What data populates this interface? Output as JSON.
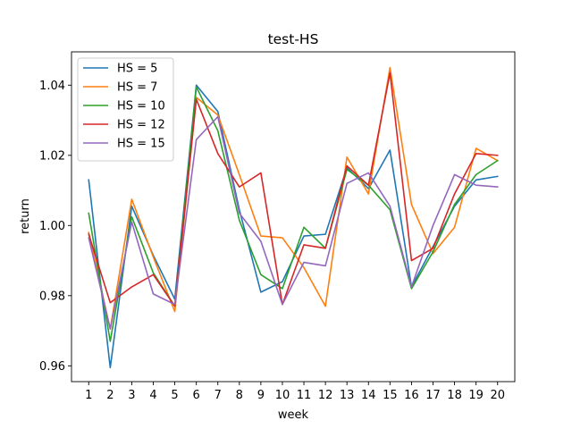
{
  "chart_data": {
    "type": "line",
    "title": "test-HS",
    "xlabel": "week",
    "ylabel": "return",
    "x": [
      1,
      2,
      3,
      4,
      5,
      6,
      7,
      8,
      9,
      10,
      11,
      12,
      13,
      14,
      15,
      16,
      17,
      18,
      19,
      20
    ],
    "xlim": [
      0.2,
      20.8
    ],
    "ylim": [
      0.9555,
      1.0495
    ],
    "yticks": [
      0.96,
      0.98,
      1.0,
      1.02,
      1.04
    ],
    "ytick_labels": [
      "0.96",
      "0.98",
      "1.00",
      "1.02",
      "1.04"
    ],
    "grid": false,
    "legend_position": "top-left",
    "series": [
      {
        "name": "HS = 5",
        "color": "#1f77b4",
        "values": [
          1.013,
          0.9595,
          1.0055,
          0.9915,
          0.979,
          1.04,
          1.0325,
          1.0045,
          0.981,
          0.984,
          0.997,
          0.9975,
          1.0165,
          1.0105,
          1.0215,
          0.9825,
          0.994,
          1.0055,
          1.013,
          1.014
        ]
      },
      {
        "name": "HS = 7",
        "color": "#ff7f0e",
        "values": [
          0.998,
          0.9705,
          1.0075,
          0.991,
          0.9755,
          1.0365,
          1.0315,
          1.0145,
          0.997,
          0.9965,
          0.988,
          0.977,
          1.0195,
          1.009,
          1.045,
          1.006,
          0.992,
          0.9995,
          1.022,
          1.0185
        ]
      },
      {
        "name": "HS = 10",
        "color": "#2ca02c",
        "values": [
          1.0035,
          0.967,
          1.0025,
          0.9865,
          0.977,
          1.0395,
          1.027,
          1.0015,
          0.986,
          0.982,
          0.9995,
          0.9935,
          1.016,
          1.0115,
          1.0045,
          0.982,
          0.9925,
          1.006,
          1.0145,
          1.0185
        ]
      },
      {
        "name": "HS = 12",
        "color": "#d62728",
        "values": [
          0.9975,
          0.978,
          0.9825,
          0.986,
          0.977,
          1.036,
          1.0205,
          1.011,
          1.015,
          0.9775,
          0.9945,
          0.9935,
          1.017,
          1.0115,
          1.0435,
          0.99,
          0.9935,
          1.009,
          1.0205,
          1.02
        ]
      },
      {
        "name": "HS = 15",
        "color": "#9467bd",
        "values": [
          0.9965,
          0.9705,
          1.001,
          0.9805,
          0.9775,
          1.0245,
          1.031,
          1.0035,
          0.9955,
          0.9775,
          0.9895,
          0.9885,
          1.012,
          1.015,
          1.0055,
          0.9825,
          1.0,
          1.0145,
          1.0115,
          1.011
        ]
      }
    ]
  }
}
